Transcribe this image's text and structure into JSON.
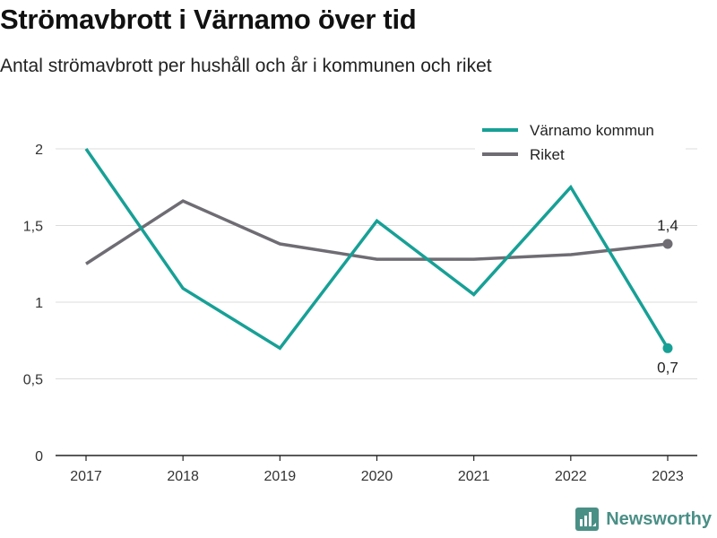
{
  "header": {
    "title": "Strömavbrott i Värnamo över tid",
    "subtitle": "Antal strömavbrott per hushåll och år i kommunen och riket"
  },
  "brand": {
    "name": "Newsworthy",
    "icon": "newsworthy-logo-icon",
    "color": "#4a8f86"
  },
  "chart_data": {
    "type": "line",
    "x": [
      "2017",
      "2018",
      "2019",
      "2020",
      "2021",
      "2022",
      "2023"
    ],
    "ylim": [
      0,
      2.2
    ],
    "yticks": [
      0,
      0.5,
      1,
      1.5,
      2
    ],
    "ytick_labels": [
      "0",
      "0,5",
      "1",
      "1,5",
      "2"
    ],
    "grid": true,
    "legend_position": "top-right",
    "series": [
      {
        "name": "Värnamo kommun",
        "color": "#17a096",
        "values": [
          2.0,
          1.09,
          0.7,
          1.53,
          1.05,
          1.75,
          0.7
        ],
        "end_label": "0,7"
      },
      {
        "name": "Riket",
        "color": "#6f6d73",
        "values": [
          1.25,
          1.66,
          1.38,
          1.28,
          1.28,
          1.31,
          1.38
        ],
        "end_label": "1,4"
      }
    ]
  }
}
